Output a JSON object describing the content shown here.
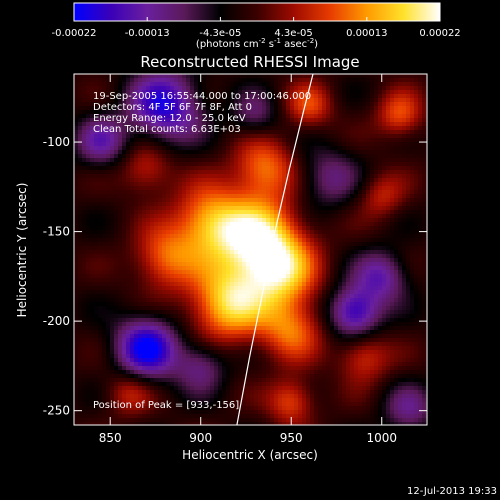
{
  "chart_data": {
    "type": "heatmap",
    "title": "Reconstructed RHESSI Image",
    "xlabel": "Heliocentric X (arcsec)",
    "ylabel": "Heliocentric Y (arcsec)",
    "xlim": [
      830,
      1025
    ],
    "ylim": [
      -258,
      -62
    ],
    "x_ticks": [
      850,
      900,
      950,
      1000
    ],
    "y_ticks": [
      -100,
      -150,
      -200,
      -250
    ],
    "colorbar": {
      "min": -0.00022,
      "max": 0.00022,
      "tick_labels": [
        "-0.00022",
        "-0.00013",
        "-4.3e-05",
        "4.3e-05",
        "0.00013",
        "0.00022"
      ],
      "unit_parts": [
        "(photons cm",
        "-2",
        " s",
        "-1",
        " asec",
        "-2",
        ")"
      ],
      "colormap": [
        "#0000ff",
        "#3a00b8",
        "#6a1f9e",
        "#5a1a5a",
        "#000000",
        "#3a0000",
        "#9e0b00",
        "#e83c00",
        "#ff9a00",
        "#ffe12a",
        "#ffffff"
      ]
    },
    "annotations": [
      "19-Sep-2005 16:55:44.000 to 17:00:46.000",
      "Detectors: 4F 5F 6F 7F 8F, Att 0",
      "Energy Range: 12.0 - 25.0 keV",
      "Clean     Total counts: 6.63E+03"
    ],
    "peak_label": "Position of Peak = [933,-156]",
    "peak": [
      933,
      -156
    ],
    "limb_points": [
      [
        920,
        -258
      ],
      [
        927,
        -220
      ],
      [
        934,
        -185
      ],
      [
        941,
        -150
      ],
      [
        949,
        -115
      ],
      [
        957,
        -82
      ],
      [
        962,
        -62
      ]
    ],
    "sources": [
      {
        "x": 933,
        "y": -156,
        "amp": 1.0,
        "s": 16
      },
      {
        "x": 905,
        "y": -145,
        "amp": 0.75,
        "s": 14
      },
      {
        "x": 915,
        "y": -190,
        "amp": 0.85,
        "s": 15
      },
      {
        "x": 945,
        "y": -175,
        "amp": 0.6,
        "s": 14
      },
      {
        "x": 950,
        "y": -205,
        "amp": 0.55,
        "s": 12
      },
      {
        "x": 935,
        "y": -115,
        "amp": 0.6,
        "s": 12
      },
      {
        "x": 880,
        "y": -165,
        "amp": 0.55,
        "s": 12
      },
      {
        "x": 870,
        "y": -115,
        "amp": 0.4,
        "s": 10
      },
      {
        "x": 960,
        "y": -80,
        "amp": 0.45,
        "s": 9
      },
      {
        "x": 1010,
        "y": -85,
        "amp": 0.5,
        "s": 9
      },
      {
        "x": 1000,
        "y": -130,
        "amp": 0.35,
        "s": 9
      },
      {
        "x": 990,
        "y": -220,
        "amp": 0.45,
        "s": 10
      },
      {
        "x": 860,
        "y": -240,
        "amp": 0.35,
        "s": 9
      },
      {
        "x": 950,
        "y": -245,
        "amp": 0.5,
        "s": 9
      },
      {
        "x": 880,
        "y": -80,
        "amp": -0.8,
        "s": 14
      },
      {
        "x": 870,
        "y": -215,
        "amp": -0.9,
        "s": 12
      },
      {
        "x": 845,
        "y": -100,
        "amp": -0.5,
        "s": 10
      },
      {
        "x": 985,
        "y": -195,
        "amp": -0.8,
        "s": 10
      },
      {
        "x": 1000,
        "y": -175,
        "amp": -0.55,
        "s": 10
      },
      {
        "x": 970,
        "y": -120,
        "amp": -0.4,
        "s": 12
      },
      {
        "x": 900,
        "y": -225,
        "amp": -0.45,
        "s": 10
      },
      {
        "x": 930,
        "y": -85,
        "amp": -0.35,
        "s": 9
      },
      {
        "x": 1015,
        "y": -250,
        "amp": -0.4,
        "s": 10
      }
    ]
  },
  "footer": {
    "timestamp": "12-Jul-2013 19:33"
  }
}
